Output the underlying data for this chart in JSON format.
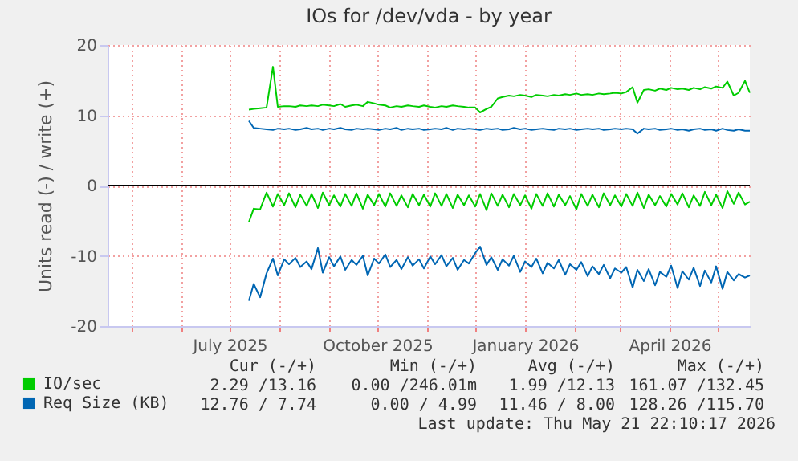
{
  "chart_data": {
    "type": "line",
    "title": "IOs for /dev/vda - by year",
    "ylabel": "Units read (-) / write (+)",
    "x": [
      "2025-07-13",
      "2025-07-16",
      "2025-07-20",
      "2025-07-24",
      "2025-07-28",
      "2025-07-31",
      "2025-08-04",
      "2025-08-07",
      "2025-08-11",
      "2025-08-14",
      "2025-08-18",
      "2025-08-21",
      "2025-08-25",
      "2025-08-28",
      "2025-09-01",
      "2025-09-04",
      "2025-09-08",
      "2025-09-11",
      "2025-09-15",
      "2025-09-18",
      "2025-09-22",
      "2025-09-25",
      "2025-09-29",
      "2025-10-02",
      "2025-10-06",
      "2025-10-09",
      "2025-10-13",
      "2025-10-16",
      "2025-10-20",
      "2025-10-23",
      "2025-10-27",
      "2025-10-30",
      "2025-11-03",
      "2025-11-06",
      "2025-11-10",
      "2025-11-13",
      "2025-11-17",
      "2025-11-20",
      "2025-11-24",
      "2025-11-27",
      "2025-12-01",
      "2025-12-04",
      "2025-12-08",
      "2025-12-11",
      "2025-12-15",
      "2025-12-18",
      "2025-12-22",
      "2025-12-25",
      "2025-12-29",
      "2026-01-01",
      "2026-01-05",
      "2026-01-08",
      "2026-01-12",
      "2026-01-15",
      "2026-01-19",
      "2026-01-22",
      "2026-01-26",
      "2026-01-29",
      "2026-02-02",
      "2026-02-05",
      "2026-02-09",
      "2026-02-12",
      "2026-02-16",
      "2026-02-19",
      "2026-02-23",
      "2026-02-26",
      "2026-03-02",
      "2026-03-05",
      "2026-03-09",
      "2026-03-12",
      "2026-03-16",
      "2026-03-19",
      "2026-03-23",
      "2026-03-26",
      "2026-03-30",
      "2026-04-02",
      "2026-04-06",
      "2026-04-09",
      "2026-04-13",
      "2026-04-16",
      "2026-04-20",
      "2026-04-23",
      "2026-04-27",
      "2026-04-30",
      "2026-05-04",
      "2026-05-07",
      "2026-05-11",
      "2026-05-14",
      "2026-05-18",
      "2026-05-21"
    ],
    "series": [
      {
        "name": "IO/sec",
        "color": "#00cc00",
        "values": [
          10.8,
          10.9,
          11.0,
          11.1,
          16.9,
          11.2,
          11.3,
          11.3,
          11.2,
          11.4,
          11.3,
          11.4,
          11.3,
          11.5,
          11.4,
          11.3,
          11.6,
          11.2,
          11.4,
          11.5,
          11.3,
          11.9,
          11.7,
          11.5,
          11.4,
          11.1,
          11.3,
          11.2,
          11.4,
          11.3,
          11.2,
          11.4,
          11.2,
          11.1,
          11.3,
          11.2,
          11.4,
          11.3,
          11.2,
          11.1,
          11.1,
          10.4,
          10.9,
          11.2,
          12.4,
          12.6,
          12.8,
          12.7,
          12.9,
          12.8,
          12.6,
          12.9,
          12.8,
          12.7,
          12.9,
          12.8,
          13.0,
          12.9,
          13.1,
          12.9,
          13.0,
          12.9,
          13.1,
          13.0,
          13.1,
          13.2,
          13.1,
          13.3,
          14.0,
          11.8,
          13.6,
          13.7,
          13.5,
          13.8,
          13.6,
          13.9,
          13.7,
          13.8,
          13.6,
          13.9,
          13.7,
          14.0,
          13.8,
          14.1,
          13.9,
          14.8,
          12.8,
          13.2,
          14.9,
          13.2
        ]
      },
      {
        "color": "#00cc00",
        "values": [
          -5.2,
          -3.3,
          -3.4,
          -1.0,
          -3.0,
          -1.2,
          -2.8,
          -1.1,
          -3.1,
          -1.3,
          -2.9,
          -1.2,
          -3.2,
          -1.0,
          -2.8,
          -1.4,
          -3.0,
          -1.2,
          -2.9,
          -1.1,
          -3.3,
          -1.3,
          -2.8,
          -1.2,
          -3.0,
          -1.1,
          -2.9,
          -1.4,
          -3.1,
          -1.2,
          -2.8,
          -1.3,
          -3.0,
          -1.1,
          -2.9,
          -1.2,
          -3.2,
          -1.3,
          -2.8,
          -1.4,
          -3.0,
          -1.2,
          -3.5,
          -1.1,
          -2.9,
          -1.3,
          -3.1,
          -1.2,
          -2.8,
          -1.4,
          -3.3,
          -1.2,
          -2.9,
          -1.1,
          -3.0,
          -1.3,
          -2.8,
          -1.5,
          -3.4,
          -1.2,
          -2.9,
          -1.3,
          -3.1,
          -1.1,
          -2.8,
          -1.4,
          -3.0,
          -1.2,
          -2.9,
          -1.0,
          -3.2,
          -1.3,
          -2.8,
          -1.5,
          -3.0,
          -1.2,
          -2.7,
          -1.1,
          -3.1,
          -1.4,
          -2.9,
          -0.9,
          -2.8,
          -1.3,
          -3.2,
          -0.8,
          -2.6,
          -1.0,
          -2.7,
          -2.3
        ]
      },
      {
        "name": "Req Size (KB)",
        "color": "#0066b3",
        "values": [
          9.2,
          8.2,
          8.1,
          8.0,
          7.9,
          8.1,
          8.0,
          8.1,
          7.9,
          8.0,
          8.2,
          8.0,
          8.1,
          7.9,
          8.1,
          8.0,
          8.2,
          8.0,
          7.9,
          8.1,
          8.0,
          8.1,
          8.0,
          7.9,
          8.1,
          8.0,
          8.2,
          7.9,
          8.1,
          8.0,
          8.1,
          7.9,
          8.0,
          8.1,
          8.0,
          8.2,
          7.9,
          8.1,
          8.0,
          8.1,
          8.0,
          7.9,
          8.1,
          8.0,
          8.1,
          7.9,
          8.0,
          8.2,
          8.0,
          8.1,
          7.9,
          8.0,
          8.1,
          8.0,
          7.9,
          8.1,
          8.0,
          8.1,
          7.9,
          8.0,
          8.1,
          8.0,
          8.1,
          7.9,
          8.0,
          8.1,
          8.0,
          8.1,
          8.0,
          7.4,
          8.1,
          8.0,
          8.1,
          7.9,
          8.0,
          8.1,
          7.9,
          8.0,
          7.8,
          8.0,
          8.1,
          7.9,
          8.0,
          7.8,
          8.1,
          7.9,
          7.8,
          8.0,
          7.8,
          7.8
        ]
      },
      {
        "color": "#0066b3",
        "values": [
          -16.4,
          -14.0,
          -15.9,
          -12.5,
          -10.4,
          -12.8,
          -10.5,
          -11.2,
          -10.3,
          -11.6,
          -10.8,
          -11.9,
          -8.9,
          -12.4,
          -10.2,
          -11.5,
          -10.1,
          -12.0,
          -10.6,
          -11.3,
          -10.0,
          -12.8,
          -10.4,
          -11.1,
          -9.8,
          -11.6,
          -10.6,
          -11.9,
          -10.2,
          -11.4,
          -10.5,
          -11.8,
          -10.1,
          -11.2,
          -9.9,
          -11.5,
          -10.3,
          -12.0,
          -10.6,
          -11.1,
          -9.6,
          -8.7,
          -11.3,
          -10.2,
          -12.0,
          -10.5,
          -11.4,
          -10.0,
          -12.3,
          -10.8,
          -11.6,
          -10.4,
          -12.5,
          -11.0,
          -11.8,
          -10.6,
          -12.7,
          -11.2,
          -12.0,
          -10.9,
          -12.9,
          -11.5,
          -12.6,
          -11.3,
          -13.2,
          -11.8,
          -12.4,
          -11.6,
          -14.5,
          -12.0,
          -13.6,
          -11.9,
          -14.2,
          -12.3,
          -13.0,
          -11.4,
          -14.6,
          -12.2,
          -13.4,
          -11.7,
          -14.3,
          -12.1,
          -13.8,
          -11.5,
          -14.7,
          -12.3,
          -13.5,
          -12.6,
          -13.1,
          -12.8
        ]
      }
    ],
    "xlim": [
      "2025-04-16",
      "2026-05-21"
    ],
    "xticks": [
      {
        "value": "2025-05-01",
        "label": null
      },
      {
        "value": "2025-06-01",
        "label": null
      },
      {
        "value": "2025-07-01",
        "label": "July 2025"
      },
      {
        "value": "2025-08-01",
        "label": null
      },
      {
        "value": "2025-09-01",
        "label": null
      },
      {
        "value": "2025-10-01",
        "label": "October 2025"
      },
      {
        "value": "2025-11-01",
        "label": null
      },
      {
        "value": "2025-12-01",
        "label": null
      },
      {
        "value": "2026-01-01",
        "label": "January 2026"
      },
      {
        "value": "2026-02-01",
        "label": null
      },
      {
        "value": "2026-03-01",
        "label": null
      },
      {
        "value": "2026-04-01",
        "label": "April 2026"
      },
      {
        "value": "2026-05-01",
        "label": null
      }
    ],
    "ylim": [
      -20,
      20
    ],
    "yticks": [
      -20,
      -10,
      0,
      10,
      20
    ],
    "ref_lines": [
      {
        "axis": "y",
        "value": 0,
        "color": "#000000"
      }
    ],
    "grid": true,
    "legend": "bottom left",
    "annotations": [
      "Cur (-/+)",
      "Min (-/+)",
      "Avg (-/+)",
      "Max (-/+)",
      "2.29 /13.16",
      "0.00 /246.01m",
      "1.99 /12.13",
      "161.07 /132.45",
      "12.76 / 7.74",
      "0.00 / 4.99",
      "11.46 / 8.00",
      "128.26 /115.70",
      "Last update: Thu May 21 22:10:17 2026"
    ]
  }
}
